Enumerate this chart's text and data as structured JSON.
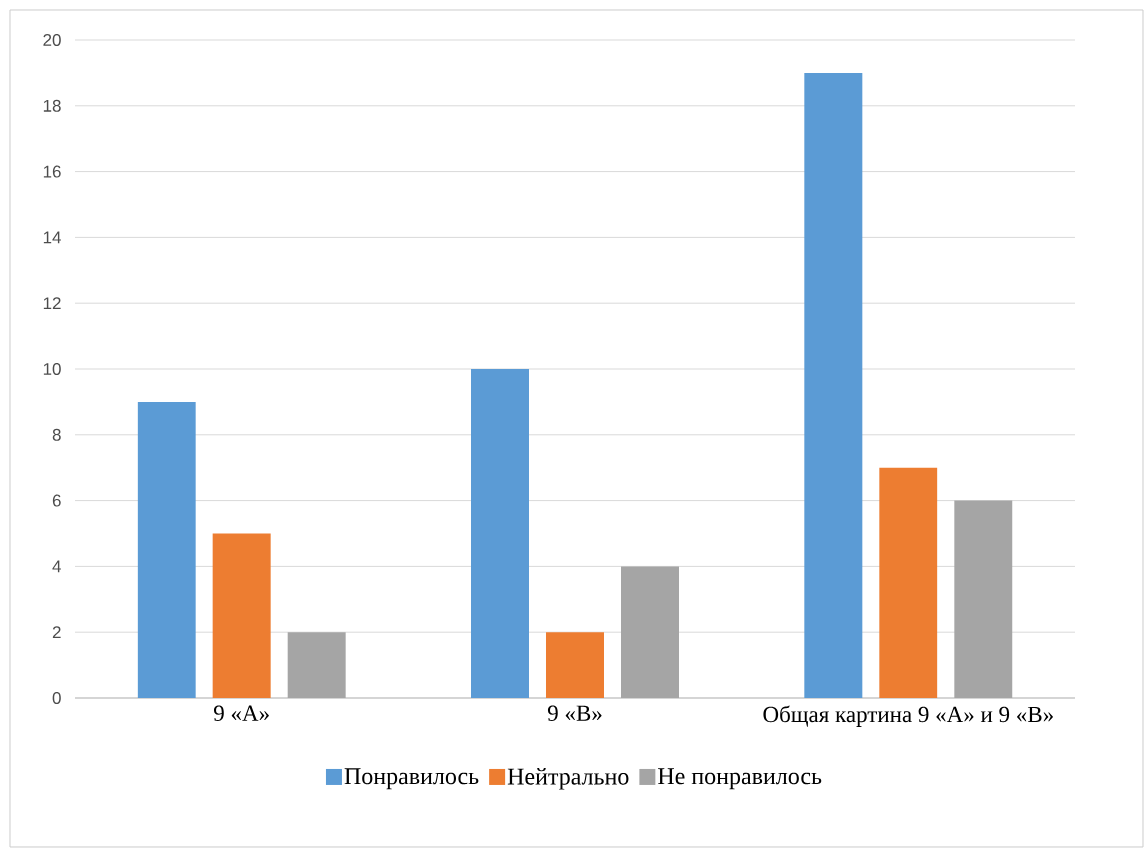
{
  "chart_data": {
    "type": "bar",
    "categories": [
      "9 «А»",
      "9 «В»",
      "Общая картина 9 «А» и 9 «В»"
    ],
    "series": [
      {
        "name": "Понравилось",
        "color": "#5b9bd5",
        "values": [
          9,
          10,
          19
        ]
      },
      {
        "name": "Нейтрально",
        "color": "#ed7d31",
        "values": [
          5,
          2,
          7
        ]
      },
      {
        "name": "Не понравилось",
        "color": "#a5a5a5",
        "values": [
          2,
          4,
          6
        ]
      }
    ],
    "ylim": [
      0,
      20
    ],
    "yticks": [
      0,
      2,
      4,
      6,
      8,
      10,
      12,
      14,
      16,
      18,
      20
    ],
    "grid": "y",
    "legend": "bottom"
  }
}
